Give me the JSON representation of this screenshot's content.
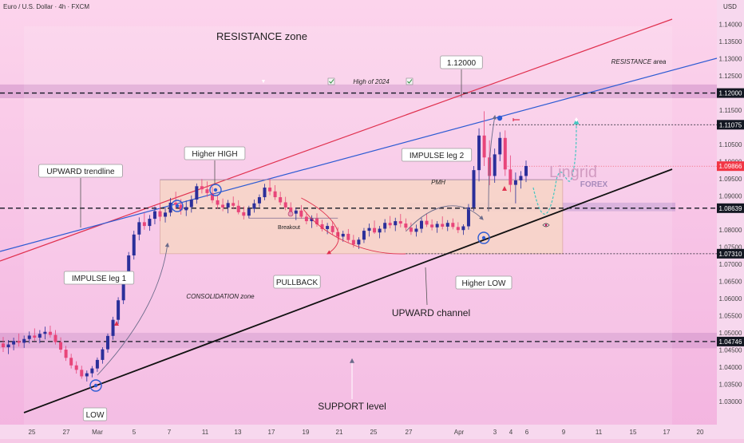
{
  "header": {
    "symbol_text": "Euro / U.S. Dollar · 4h · FXCM",
    "currency": "USD"
  },
  "chart_data": {
    "type": "candlestick",
    "title": "Euro / U.S. Dollar · 4h · FXCM",
    "y_unit": "USD",
    "ylim": [
      1.0232,
      1.1453
    ],
    "y_ticks": [
      "1.14000",
      "1.13500",
      "1.13000",
      "1.12500",
      "1.12000",
      "1.11500",
      "1.11075",
      "1.10500",
      "1.10000",
      "1.09866",
      "1.09500",
      "1.09000",
      "1.08639",
      "1.08000",
      "1.07500",
      "1.07310",
      "1.07000",
      "1.06500",
      "1.06000",
      "1.05500",
      "1.05000",
      "1.04746",
      "1.04500",
      "1.04000",
      "1.03500",
      "1.03000"
    ],
    "x_ticks": [
      "25",
      "27",
      "Mar",
      "5",
      "7",
      "11",
      "13",
      "17",
      "19",
      "21",
      "25",
      "27",
      "Apr",
      "3",
      "4",
      "6",
      "9",
      "11",
      "15",
      "17",
      "20"
    ],
    "price_levels": [
      {
        "value": 1.12,
        "label": "1.12000",
        "color": "#131722"
      },
      {
        "value": 1.11075,
        "label": "1.11075",
        "color": "#131722"
      },
      {
        "value": 1.09866,
        "label": "1.09866",
        "color": "#f23645"
      },
      {
        "value": 1.08639,
        "label": "1.08639",
        "color": "#131722"
      },
      {
        "value": 1.0731,
        "label": "1.07310",
        "color": "#131722"
      },
      {
        "value": 1.04746,
        "label": "1.04746",
        "color": "#131722"
      }
    ],
    "zones": {
      "resistance_band": [
        1.1185,
        1.1225
      ],
      "support_band": [
        1.0455,
        1.05
      ],
      "retest_band": [
        1.0855,
        1.088
      ],
      "consolidation_box": {
        "x_from": 30,
        "x_to": 107,
        "y_low": 1.0731,
        "y_high": 1.0947
      }
    },
    "candles": [
      [
        1.0469,
        1.0488,
        1.0444,
        1.0458
      ],
      [
        1.0458,
        1.0479,
        1.0438,
        1.0466
      ],
      [
        1.0466,
        1.0486,
        1.0449,
        1.0476
      ],
      [
        1.0476,
        1.0498,
        1.046,
        1.0471
      ],
      [
        1.0471,
        1.0492,
        1.0456,
        1.0482
      ],
      [
        1.0482,
        1.0504,
        1.0469,
        1.0492
      ],
      [
        1.0492,
        1.0513,
        1.0477,
        1.0486
      ],
      [
        1.0486,
        1.0508,
        1.047,
        1.0497
      ],
      [
        1.0497,
        1.0518,
        1.0481,
        1.0503
      ],
      [
        1.0503,
        1.0521,
        1.0486,
        1.0494
      ],
      [
        1.0494,
        1.0508,
        1.0466,
        1.0473
      ],
      [
        1.0473,
        1.0487,
        1.0442,
        1.0451
      ],
      [
        1.0451,
        1.0462,
        1.0418,
        1.0427
      ],
      [
        1.0427,
        1.0439,
        1.0396,
        1.0405
      ],
      [
        1.0405,
        1.0417,
        1.0381,
        1.0392
      ],
      [
        1.0392,
        1.0404,
        1.0366,
        1.0373
      ],
      [
        1.0373,
        1.039,
        1.0358,
        1.0382
      ],
      [
        1.0382,
        1.0403,
        1.037,
        1.0396
      ],
      [
        1.0396,
        1.0428,
        1.0386,
        1.0421
      ],
      [
        1.0421,
        1.0458,
        1.041,
        1.0452
      ],
      [
        1.0452,
        1.0498,
        1.0442,
        1.0491
      ],
      [
        1.0491,
        1.0547,
        1.048,
        1.0538
      ],
      [
        1.0538,
        1.0604,
        1.0526,
        1.0595
      ],
      [
        1.0595,
        1.0668,
        1.0584,
        1.0659
      ],
      [
        1.0659,
        1.0736,
        1.0648,
        1.0726
      ],
      [
        1.0726,
        1.0798,
        1.0714,
        1.0787
      ],
      [
        1.0787,
        1.0837,
        1.077,
        1.0823
      ],
      [
        1.0823,
        1.0851,
        1.0801,
        1.0812
      ],
      [
        1.0812,
        1.0844,
        1.0798,
        1.0833
      ],
      [
        1.0833,
        1.0869,
        1.0817,
        1.0855
      ],
      [
        1.0855,
        1.0877,
        1.0826,
        1.0839
      ],
      [
        1.0839,
        1.0866,
        1.0822,
        1.0851
      ],
      [
        1.0851,
        1.0894,
        1.084,
        1.088
      ],
      [
        1.088,
        1.0912,
        1.0862,
        1.0874
      ],
      [
        1.0874,
        1.0891,
        1.0845,
        1.0858
      ],
      [
        1.0858,
        1.0886,
        1.0841,
        1.0867
      ],
      [
        1.0867,
        1.0901,
        1.0851,
        1.0889
      ],
      [
        1.0889,
        1.0936,
        1.0877,
        1.0928
      ],
      [
        1.0928,
        1.0949,
        1.0907,
        1.0919
      ],
      [
        1.0919,
        1.0942,
        1.0897,
        1.0908
      ],
      [
        1.0908,
        1.0926,
        1.0879,
        1.0887
      ],
      [
        1.0887,
        1.0903,
        1.0862,
        1.0874
      ],
      [
        1.0874,
        1.0892,
        1.0855,
        1.0866
      ],
      [
        1.0866,
        1.0888,
        1.0849,
        1.0879
      ],
      [
        1.0879,
        1.0898,
        1.0861,
        1.0871
      ],
      [
        1.0871,
        1.0887,
        1.0846,
        1.0852
      ],
      [
        1.0852,
        1.0869,
        1.0831,
        1.0842
      ],
      [
        1.0842,
        1.0871,
        1.0834,
        1.0862
      ],
      [
        1.0862,
        1.0889,
        1.0851,
        1.0878
      ],
      [
        1.0878,
        1.0904,
        1.0867,
        1.0896
      ],
      [
        1.0896,
        1.0935,
        1.0887,
        1.0924
      ],
      [
        1.0924,
        1.0951,
        1.0902,
        1.0913
      ],
      [
        1.0913,
        1.0931,
        1.0888,
        1.0896
      ],
      [
        1.0896,
        1.0912,
        1.0873,
        1.0881
      ],
      [
        1.0881,
        1.0897,
        1.0858,
        1.0866
      ],
      [
        1.0866,
        1.0881,
        1.084,
        1.0848
      ],
      [
        1.0848,
        1.0866,
        1.0829,
        1.0857
      ],
      [
        1.0857,
        1.0873,
        1.0833,
        1.0839
      ],
      [
        1.0839,
        1.0852,
        1.0817,
        1.0826
      ],
      [
        1.0826,
        1.0843,
        1.0806,
        1.0834
      ],
      [
        1.0834,
        1.0849,
        1.081,
        1.0817
      ],
      [
        1.0817,
        1.083,
        1.0796,
        1.0803
      ],
      [
        1.0803,
        1.0821,
        1.0788,
        1.0812
      ],
      [
        1.0812,
        1.0826,
        1.0787,
        1.0794
      ],
      [
        1.0794,
        1.0808,
        1.0772,
        1.0781
      ],
      [
        1.0781,
        1.0798,
        1.0766,
        1.0789
      ],
      [
        1.0789,
        1.0803,
        1.0764,
        1.0771
      ],
      [
        1.0771,
        1.0786,
        1.0749,
        1.0758
      ],
      [
        1.0758,
        1.0779,
        1.0745,
        1.0772
      ],
      [
        1.0772,
        1.0806,
        1.0762,
        1.0798
      ],
      [
        1.0798,
        1.0819,
        1.0781,
        1.0806
      ],
      [
        1.0806,
        1.0828,
        1.0789,
        1.0793
      ],
      [
        1.0793,
        1.0812,
        1.0776,
        1.0804
      ],
      [
        1.0804,
        1.0832,
        1.0793,
        1.0821
      ],
      [
        1.0821,
        1.0841,
        1.0805,
        1.0814
      ],
      [
        1.0814,
        1.0836,
        1.0797,
        1.0826
      ],
      [
        1.0826,
        1.0847,
        1.0808,
        1.0819
      ],
      [
        1.0819,
        1.0834,
        1.0799,
        1.0807
      ],
      [
        1.0807,
        1.0822,
        1.0786,
        1.0795
      ],
      [
        1.0795,
        1.0816,
        1.0781,
        1.0804
      ],
      [
        1.0804,
        1.0836,
        1.0792,
        1.0827
      ],
      [
        1.0827,
        1.0849,
        1.0809,
        1.0816
      ],
      [
        1.0816,
        1.0831,
        1.0799,
        1.0808
      ],
      [
        1.0808,
        1.0826,
        1.0792,
        1.0818
      ],
      [
        1.0818,
        1.084,
        1.0802,
        1.081
      ],
      [
        1.081,
        1.0829,
        1.0797,
        1.0821
      ],
      [
        1.0821,
        1.0834,
        1.0802,
        1.0809
      ],
      [
        1.0809,
        1.0823,
        1.0791,
        1.08
      ],
      [
        1.08,
        1.0817,
        1.0786,
        1.0811
      ],
      [
        1.0811,
        1.0876,
        1.0801,
        1.0866
      ],
      [
        1.0866,
        1.0987,
        1.0856,
        1.0975
      ],
      [
        1.0975,
        1.1097,
        1.0942,
        1.1076
      ],
      [
        1.1076,
        1.1147,
        1.0987,
        1.1012
      ],
      [
        1.1012,
        1.1062,
        1.0931,
        1.0958
      ],
      [
        1.0958,
        1.1038,
        1.0938,
        1.1021
      ],
      [
        1.1021,
        1.1086,
        1.1001,
        1.1069
      ],
      [
        1.1069,
        1.1091,
        1.0958,
        1.0977
      ],
      [
        1.0977,
        1.1018,
        1.0911,
        1.0932
      ],
      [
        1.0932,
        1.0968,
        1.0878,
        1.0945
      ],
      [
        1.0945,
        1.0972,
        1.0921,
        1.0958
      ],
      [
        1.0958,
        1.1003,
        1.094,
        1.0987
      ]
    ]
  },
  "annotations": {
    "resistance_zone": "RESISTANCE zone",
    "high_of_2024": "High of 2024",
    "price_112": "1.12000",
    "resistance_area": "RESISTANCE area",
    "higher_high": "Higher HIGH",
    "upward_trendline": "UPWARD trendline",
    "impulse_leg_1": "IMPULSE leg 1",
    "consolidation_zone": "CONSOLIDATION zone",
    "breakout": "Breakout",
    "pmh": "PMH",
    "pullback": "PULLBACK",
    "impulse_leg_2": "IMPULSE leg 2",
    "higher_low": "Higher LOW",
    "upward_channel": "UPWARD channel",
    "low": "LOW",
    "support_level": "SUPPORT level",
    "watermark_brand": "Lingrid",
    "watermark_sub": "FOREX"
  }
}
